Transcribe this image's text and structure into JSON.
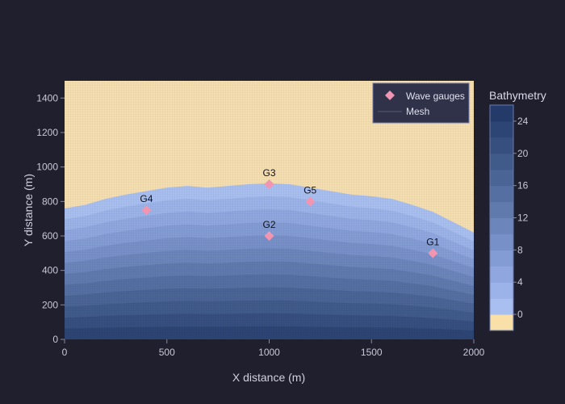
{
  "chart_data": {
    "type": "heatmap",
    "title": "",
    "xlabel": "X distance (m)",
    "ylabel": "Y distance (m)",
    "xlim": [
      0,
      2000
    ],
    "ylim": [
      0,
      1500
    ],
    "x_ticks": [
      "0",
      "500",
      "1000",
      "1500",
      "2000"
    ],
    "y_ticks": [
      "0",
      "200",
      "400",
      "600",
      "800",
      "1000",
      "1200",
      "1400"
    ],
    "colorbar": {
      "title": "Bathymetry",
      "ticks": [
        "0",
        "4",
        "8",
        "12",
        "16",
        "20",
        "24"
      ],
      "range": [
        -2,
        26
      ],
      "colors": [
        "#f8e0a8",
        "#a8bff0",
        "#9bb3e8",
        "#8fa7de",
        "#839cd3",
        "#7790c7",
        "#6c85bb",
        "#607aae",
        "#556fa2",
        "#4a6496",
        "#405a8a",
        "#364f7f",
        "#2d4574",
        "#243b69"
      ]
    },
    "coastline": [
      {
        "x": 0,
        "y": 760
      },
      {
        "x": 100,
        "y": 780
      },
      {
        "x": 200,
        "y": 815
      },
      {
        "x": 300,
        "y": 840
      },
      {
        "x": 400,
        "y": 860
      },
      {
        "x": 500,
        "y": 880
      },
      {
        "x": 600,
        "y": 890
      },
      {
        "x": 700,
        "y": 880
      },
      {
        "x": 800,
        "y": 890
      },
      {
        "x": 900,
        "y": 900
      },
      {
        "x": 1000,
        "y": 905
      },
      {
        "x": 1100,
        "y": 900
      },
      {
        "x": 1200,
        "y": 880
      },
      {
        "x": 1300,
        "y": 860
      },
      {
        "x": 1400,
        "y": 840
      },
      {
        "x": 1500,
        "y": 830
      },
      {
        "x": 1600,
        "y": 815
      },
      {
        "x": 1700,
        "y": 780
      },
      {
        "x": 1800,
        "y": 740
      },
      {
        "x": 1900,
        "y": 680
      },
      {
        "x": 2000,
        "y": 620
      }
    ],
    "series": [
      {
        "name": "Wave gauges",
        "marker": "diamond",
        "color": "#f095b2",
        "points": [
          {
            "label": "G1",
            "x": 1800,
            "y": 500
          },
          {
            "label": "G2",
            "x": 1000,
            "y": 600
          },
          {
            "label": "G3",
            "x": 1000,
            "y": 900
          },
          {
            "label": "G4",
            "x": 400,
            "y": 750
          },
          {
            "label": "G5",
            "x": 1200,
            "y": 800
          }
        ]
      },
      {
        "name": "Mesh",
        "color": "#5a5a70"
      }
    ],
    "legend_placement": "top-right"
  }
}
